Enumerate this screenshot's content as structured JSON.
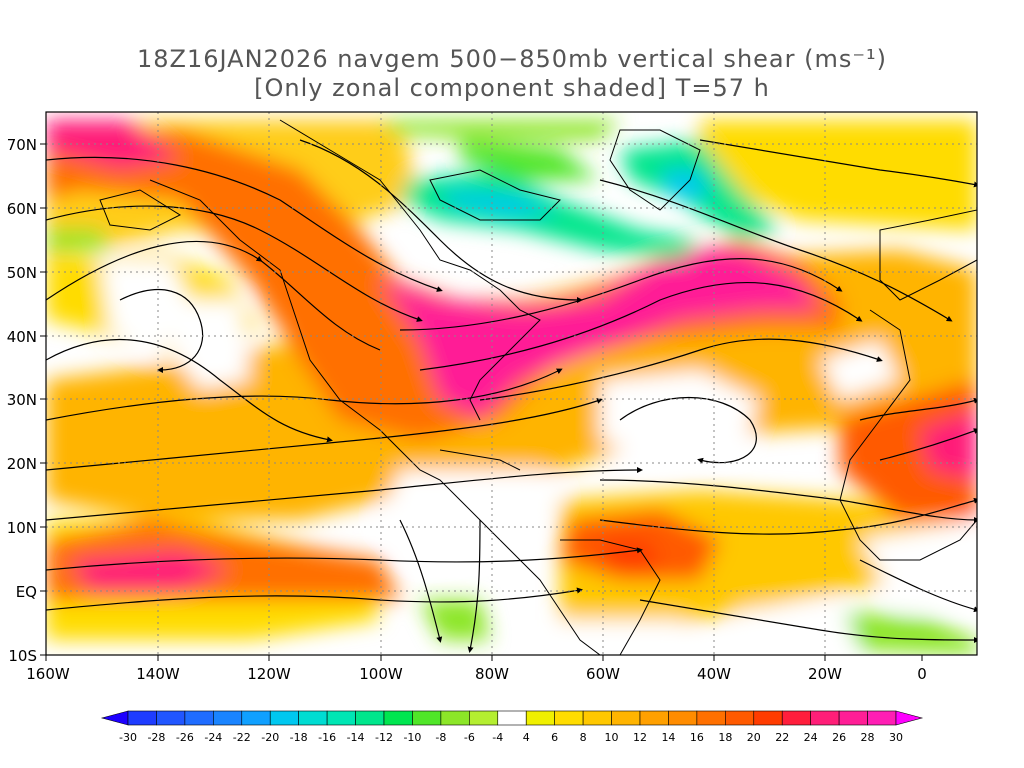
{
  "title": {
    "line1": "18Z16JAN2026 navgem 500−850mb vertical shear (ms⁻¹)",
    "line2": "[Only zonal component shaded] T=57 h"
  },
  "map": {
    "lon_labels": [
      "160W",
      "140W",
      "120W",
      "100W",
      "80W",
      "60W",
      "40W",
      "20W",
      "0"
    ],
    "lat_labels": [
      "70N",
      "60N",
      "50N",
      "40N",
      "30N",
      "20N",
      "10N",
      "EQ",
      "10S"
    ],
    "lon_range": [
      -160,
      10
    ],
    "lat_range": [
      -10,
      75
    ]
  },
  "colorbar": {
    "labels": [
      "-30",
      "-28",
      "-26",
      "-24",
      "-22",
      "-20",
      "-18",
      "-16",
      "-14",
      "-12",
      "-10",
      "-8",
      "-6",
      "-4",
      "4",
      "6",
      "8",
      "10",
      "12",
      "14",
      "16",
      "18",
      "20",
      "22",
      "24",
      "26",
      "28",
      "30"
    ],
    "colors": [
      "#1e3cff",
      "#2156ff",
      "#1f6cff",
      "#1a84ff",
      "#10a0ff",
      "#00c8f0",
      "#00dcd2",
      "#00e6b4",
      "#00e68c",
      "#00e650",
      "#50e628",
      "#8ce628",
      "#b4ee30",
      "#ffffff",
      "#f0f000",
      "#ffdc00",
      "#ffc800",
      "#ffb400",
      "#ffa000",
      "#ff8c00",
      "#ff7000",
      "#ff5a00",
      "#ff3c00",
      "#ff1e3c",
      "#ff1e78",
      "#ff1e96",
      "#ff1eb4"
    ],
    "low_end_color": "#1e00ff",
    "high_end_color": "#ff00ff"
  }
}
